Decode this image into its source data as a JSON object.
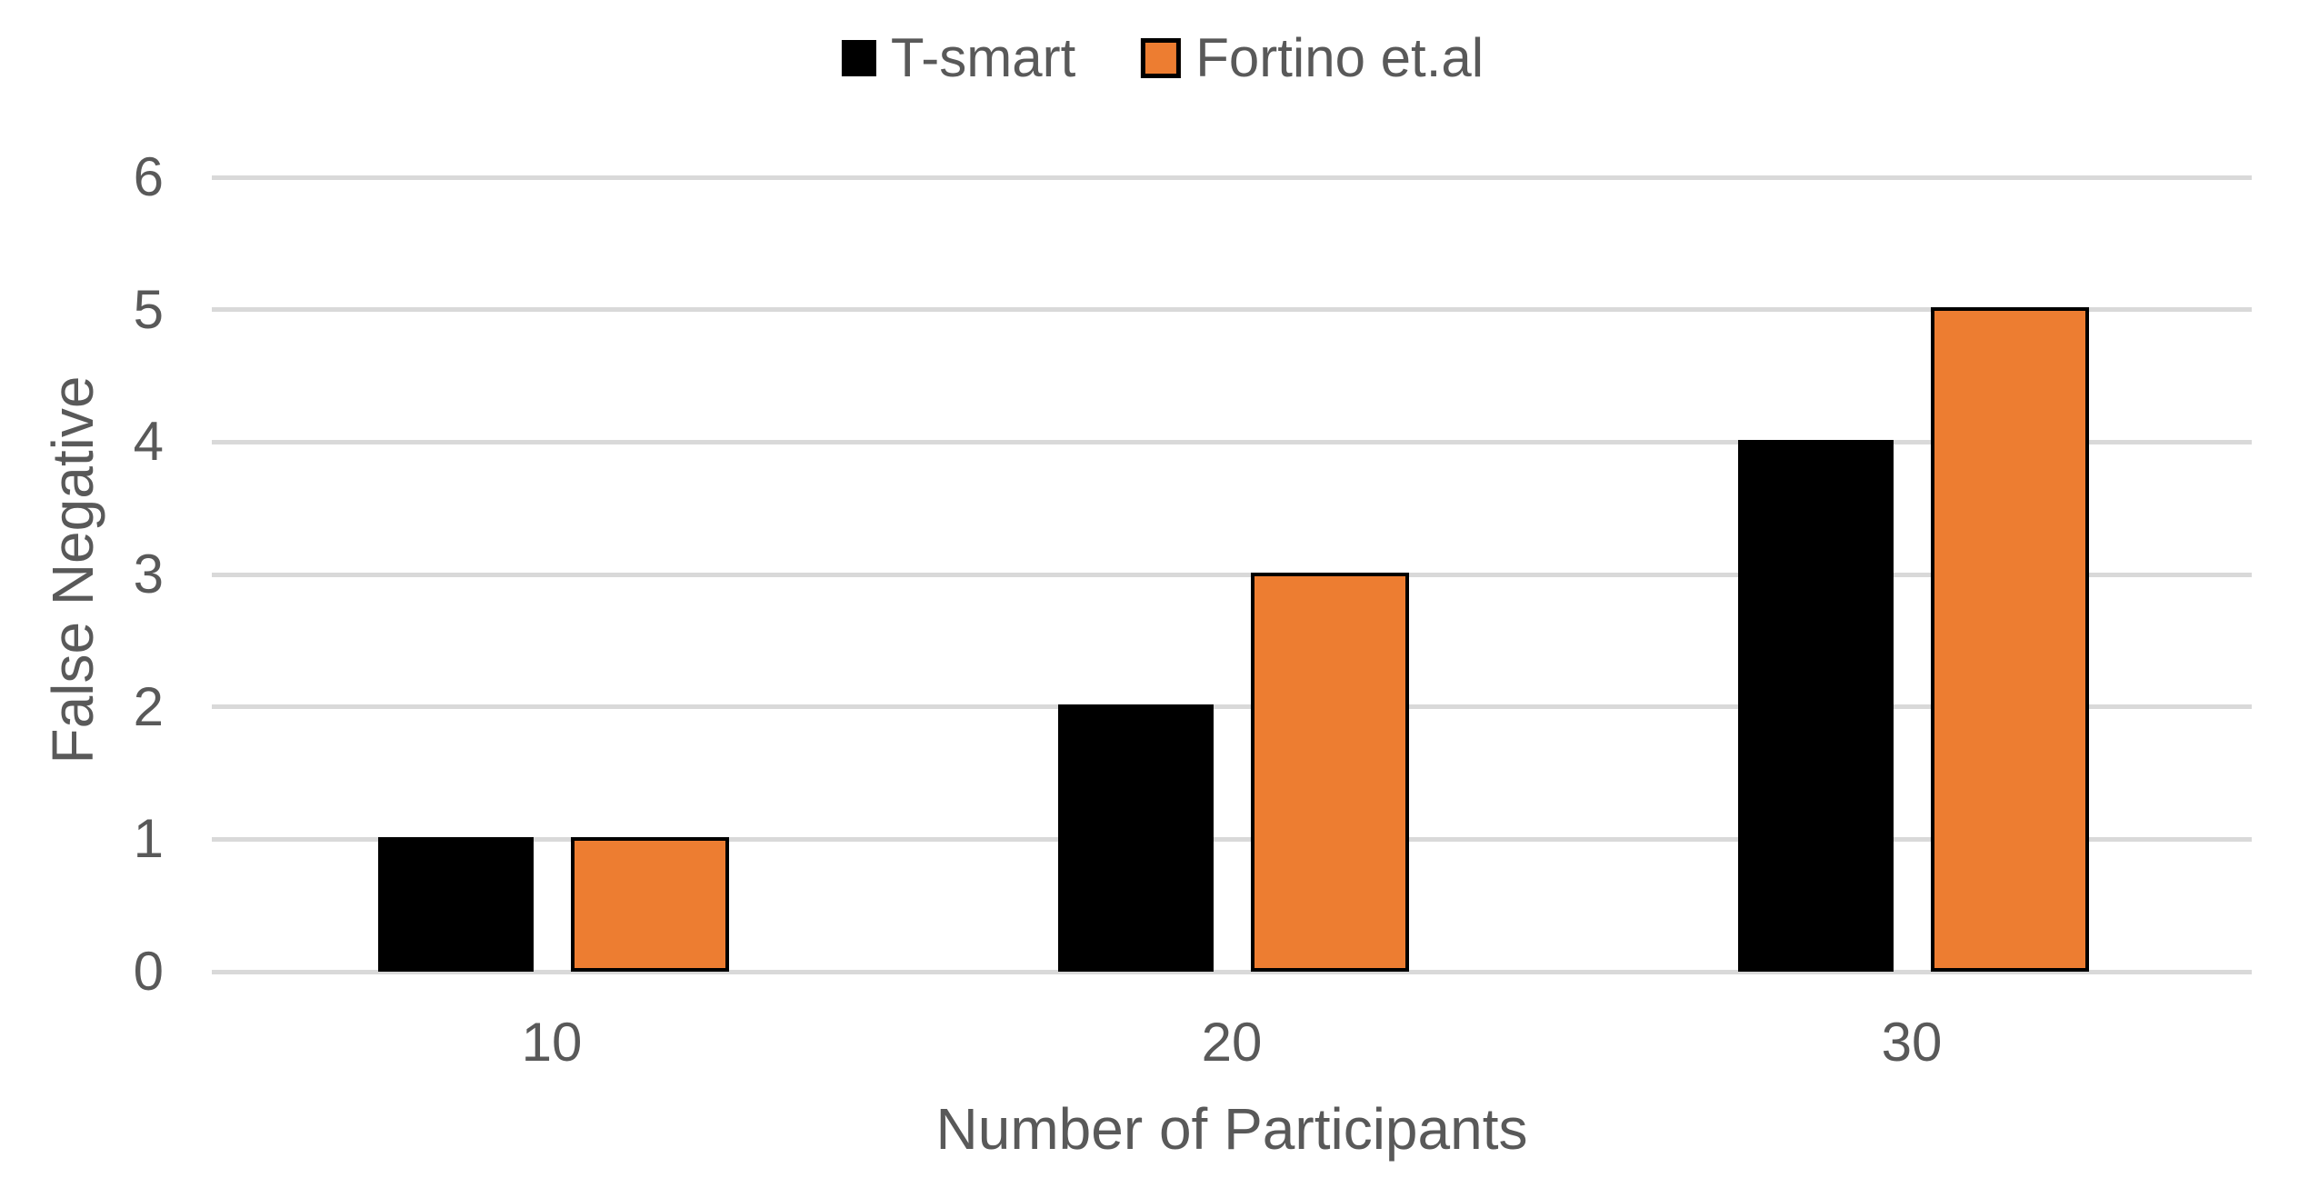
{
  "chart_data": {
    "type": "bar",
    "title": "",
    "categories": [
      "10",
      "20",
      "30"
    ],
    "series": [
      {
        "name": "T-smart",
        "color": "#000000",
        "border_color": "#000000",
        "values": [
          1,
          2,
          4
        ]
      },
      {
        "name": "Fortino et.al",
        "color": "#ED7D31",
        "border_color": "#000000",
        "values": [
          1,
          3,
          5
        ]
      }
    ],
    "xlabel": "Number of Participants",
    "ylabel": "False Negative",
    "ylim": [
      0,
      6
    ],
    "ytick_step": 1,
    "yticks": [
      "0",
      "1",
      "2",
      "3",
      "4",
      "5",
      "6"
    ],
    "xticks": [
      "10",
      "20",
      "30"
    ],
    "grid": "horizontal",
    "gridline_color": "#D9D9D9",
    "legend_position": "top-center",
    "legend_labels": [
      "T-smart",
      "Fortino et.al"
    ],
    "text_color": "#595959",
    "background_color": "#FFFFFF"
  }
}
